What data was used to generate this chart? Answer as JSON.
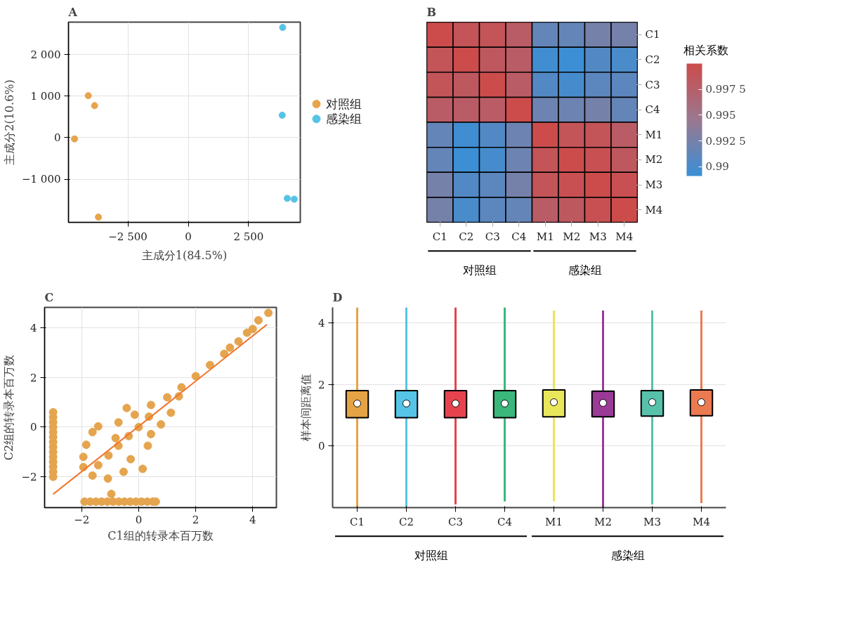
{
  "chart_data": [
    {
      "type": "scatter",
      "title": "A",
      "xlabel": "主成分1(84.5%)",
      "ylabel": "主成分2(10.6%)",
      "xlim": [
        -4960,
        4640
      ],
      "ylim": [
        -2037,
        2778
      ],
      "xticks": [
        {
          "value": -2500,
          "label": "−2 500"
        },
        0,
        {
          "value": 2500,
          "label": "2 500"
        }
      ],
      "yticks": [
        {
          "value": -1000,
          "label": "−1 000"
        },
        0,
        {
          "value": 1000,
          "label": "1 000"
        },
        {
          "value": 2000,
          "label": "2 000"
        }
      ],
      "grid": true,
      "legend": "right",
      "marker": "circle",
      "series": [
        {
          "name": "对照组",
          "color": "#e8a44a",
          "x": [
            -4140,
            -3880,
            -4710,
            -3720
          ],
          "values": [
            1010,
            770,
            -30,
            -1910
          ]
        },
        {
          "name": "感染组",
          "color": "#56c3e6",
          "x": [
            3910,
            3890,
            4100,
            4390
          ],
          "values": [
            2650,
            540,
            -1460,
            -1480
          ]
        }
      ]
    },
    {
      "type": "heatmap",
      "title": "B",
      "categories": [
        "C1",
        "C2",
        "C3",
        "C4",
        "M1",
        "M2",
        "M3",
        "M4"
      ],
      "y_categories": [
        "C1",
        "C2",
        "C3",
        "C4",
        "M1",
        "M2",
        "M3",
        "M4"
      ],
      "clabel": "相关系数",
      "clim": [
        0.9891,
        1.0
      ],
      "cticks": [
        0.99,
        {
          "value": 0.9925,
          "label": "0.992 5"
        },
        0.995,
        {
          "value": 0.9975,
          "label": "0.997 5"
        }
      ],
      "annotations": [
        "对照组",
        "感染组"
      ],
      "cells": [
        [
          1.0,
          0.999,
          0.999,
          0.998,
          0.9915,
          0.9915,
          0.9925,
          0.9925
        ],
        [
          0.999,
          1.0,
          0.9985,
          0.998,
          0.9895,
          0.9892,
          0.9905,
          0.99
        ],
        [
          0.999,
          0.9985,
          1.0,
          0.998,
          0.9905,
          0.9898,
          0.991,
          0.991
        ],
        [
          0.998,
          0.998,
          0.998,
          1.0,
          0.992,
          0.992,
          0.9925,
          0.9915
        ],
        [
          0.9915,
          0.9895,
          0.9905,
          0.992,
          1.0,
          0.999,
          0.999,
          0.998
        ],
        [
          0.9915,
          0.9892,
          0.9898,
          0.992,
          0.999,
          1.0,
          0.9995,
          0.9985
        ],
        [
          0.9925,
          0.9905,
          0.991,
          0.9925,
          0.999,
          0.9995,
          1.0,
          0.9995
        ],
        [
          0.9925,
          0.99,
          0.991,
          0.9915,
          0.998,
          0.9985,
          0.9995,
          1.0
        ]
      ]
    },
    {
      "type": "scatter",
      "title": "C",
      "xlabel": "C1组的转录本百万数",
      "ylabel": "C2组的转录本百万数",
      "xlim": [
        -3.3,
        4.83
      ],
      "ylim": [
        -3.24,
        4.82
      ],
      "xticks": [
        {
          "value": -2,
          "label": "−2"
        },
        0,
        2,
        4
      ],
      "yticks": [
        {
          "value": -2,
          "label": "−2"
        },
        0,
        2,
        4
      ],
      "grid": true,
      "marker": "circle",
      "series": [
        {
          "color": "#e5a44e",
          "x": [
            -3,
            -3,
            -3,
            -3,
            -3,
            -3,
            -3,
            -3,
            -3,
            -3,
            -3,
            -3,
            -3,
            -3,
            -1.9,
            -1.7,
            -1.5,
            -1.3,
            -1.1,
            -0.9,
            -0.7,
            -0.5,
            -0.3,
            -0.1,
            0.1,
            0.3,
            0.5,
            0.6,
            2,
            2.5,
            3,
            3.5,
            4,
            4.2,
            4.55,
            1.5,
            1,
            3.2,
            3.8,
            -1.94,
            -1.84,
            -1.42,
            -0.42,
            0.43,
            1.41,
            1.13,
            0.78,
            0.32,
            0.14,
            -0.53,
            -1.08,
            -0.96,
            -1.62,
            -0.71,
            -0.35,
            0,
            -1.06,
            -1.42,
            0.36,
            -0.81,
            -1.62,
            -0.14,
            -0.71,
            0.43,
            -0.28,
            -1.94
          ],
          "values": [
            -2,
            -1.8,
            -1.6,
            -1.4,
            -1.2,
            -1,
            -0.8,
            -0.6,
            -0.4,
            -0.2,
            0,
            0.2,
            0.4,
            0.6,
            -3,
            -3,
            -3,
            -3,
            -3,
            -3,
            -3,
            -3,
            -3,
            -3,
            -3,
            -3,
            -3,
            -3,
            2.05,
            2.5,
            2.95,
            3.45,
            3.95,
            4.3,
            4.6,
            1.6,
            1.2,
            3.2,
            3.8,
            -1.2,
            -0.71,
            0.03,
            0.77,
            0.89,
            1.24,
            0.58,
            0.11,
            -0.75,
            -1.68,
            -1.8,
            -2.07,
            -2.69,
            -1.95,
            -0.75,
            -0.36,
            0,
            -1.14,
            -1.53,
            0.42,
            -0.44,
            -0.2,
            0.5,
            0.19,
            -0.28,
            -1.29,
            -1.61
          ]
        },
        {
          "type": "line",
          "marker": "none",
          "color": "#f07830",
          "x": [
            -3,
            4.5
          ],
          "values": [
            -2.7,
            4.13
          ]
        }
      ]
    },
    {
      "type": "box",
      "title": "D",
      "ylabel": "样本间距离值",
      "categories": [
        "C1",
        "C2",
        "C3",
        "C4",
        "M1",
        "M2",
        "M3",
        "M4"
      ],
      "ylim": [
        -2,
        4.5
      ],
      "yticks": [
        0,
        2,
        4
      ],
      "grid": "y",
      "annotations": [
        "对照组",
        "感染组"
      ],
      "colors": [
        "#e5a345",
        "#56c4e6",
        "#e6434f",
        "#3bb77c",
        "#e8e65a",
        "#9c3a98",
        "#57c1aa",
        "#ec7a50"
      ],
      "boxes": [
        {
          "low": -2.0,
          "q1": 0.92,
          "median": 1.38,
          "q3": 1.8,
          "high": 4.5
        },
        {
          "low": -2.0,
          "q1": 0.92,
          "median": 1.38,
          "q3": 1.8,
          "high": 4.5
        },
        {
          "low": -1.9,
          "q1": 0.92,
          "median": 1.38,
          "q3": 1.8,
          "high": 4.5
        },
        {
          "low": -1.8,
          "q1": 0.92,
          "median": 1.38,
          "q3": 1.8,
          "high": 4.5
        },
        {
          "low": -1.8,
          "q1": 0.95,
          "median": 1.42,
          "q3": 1.82,
          "high": 4.4
        },
        {
          "low": -2.0,
          "q1": 0.95,
          "median": 1.4,
          "q3": 1.78,
          "high": 4.4
        },
        {
          "low": -1.9,
          "q1": 0.97,
          "median": 1.42,
          "q3": 1.8,
          "high": 4.4
        },
        {
          "low": -1.85,
          "q1": 0.98,
          "median": 1.42,
          "q3": 1.82,
          "high": 4.4
        }
      ]
    }
  ]
}
